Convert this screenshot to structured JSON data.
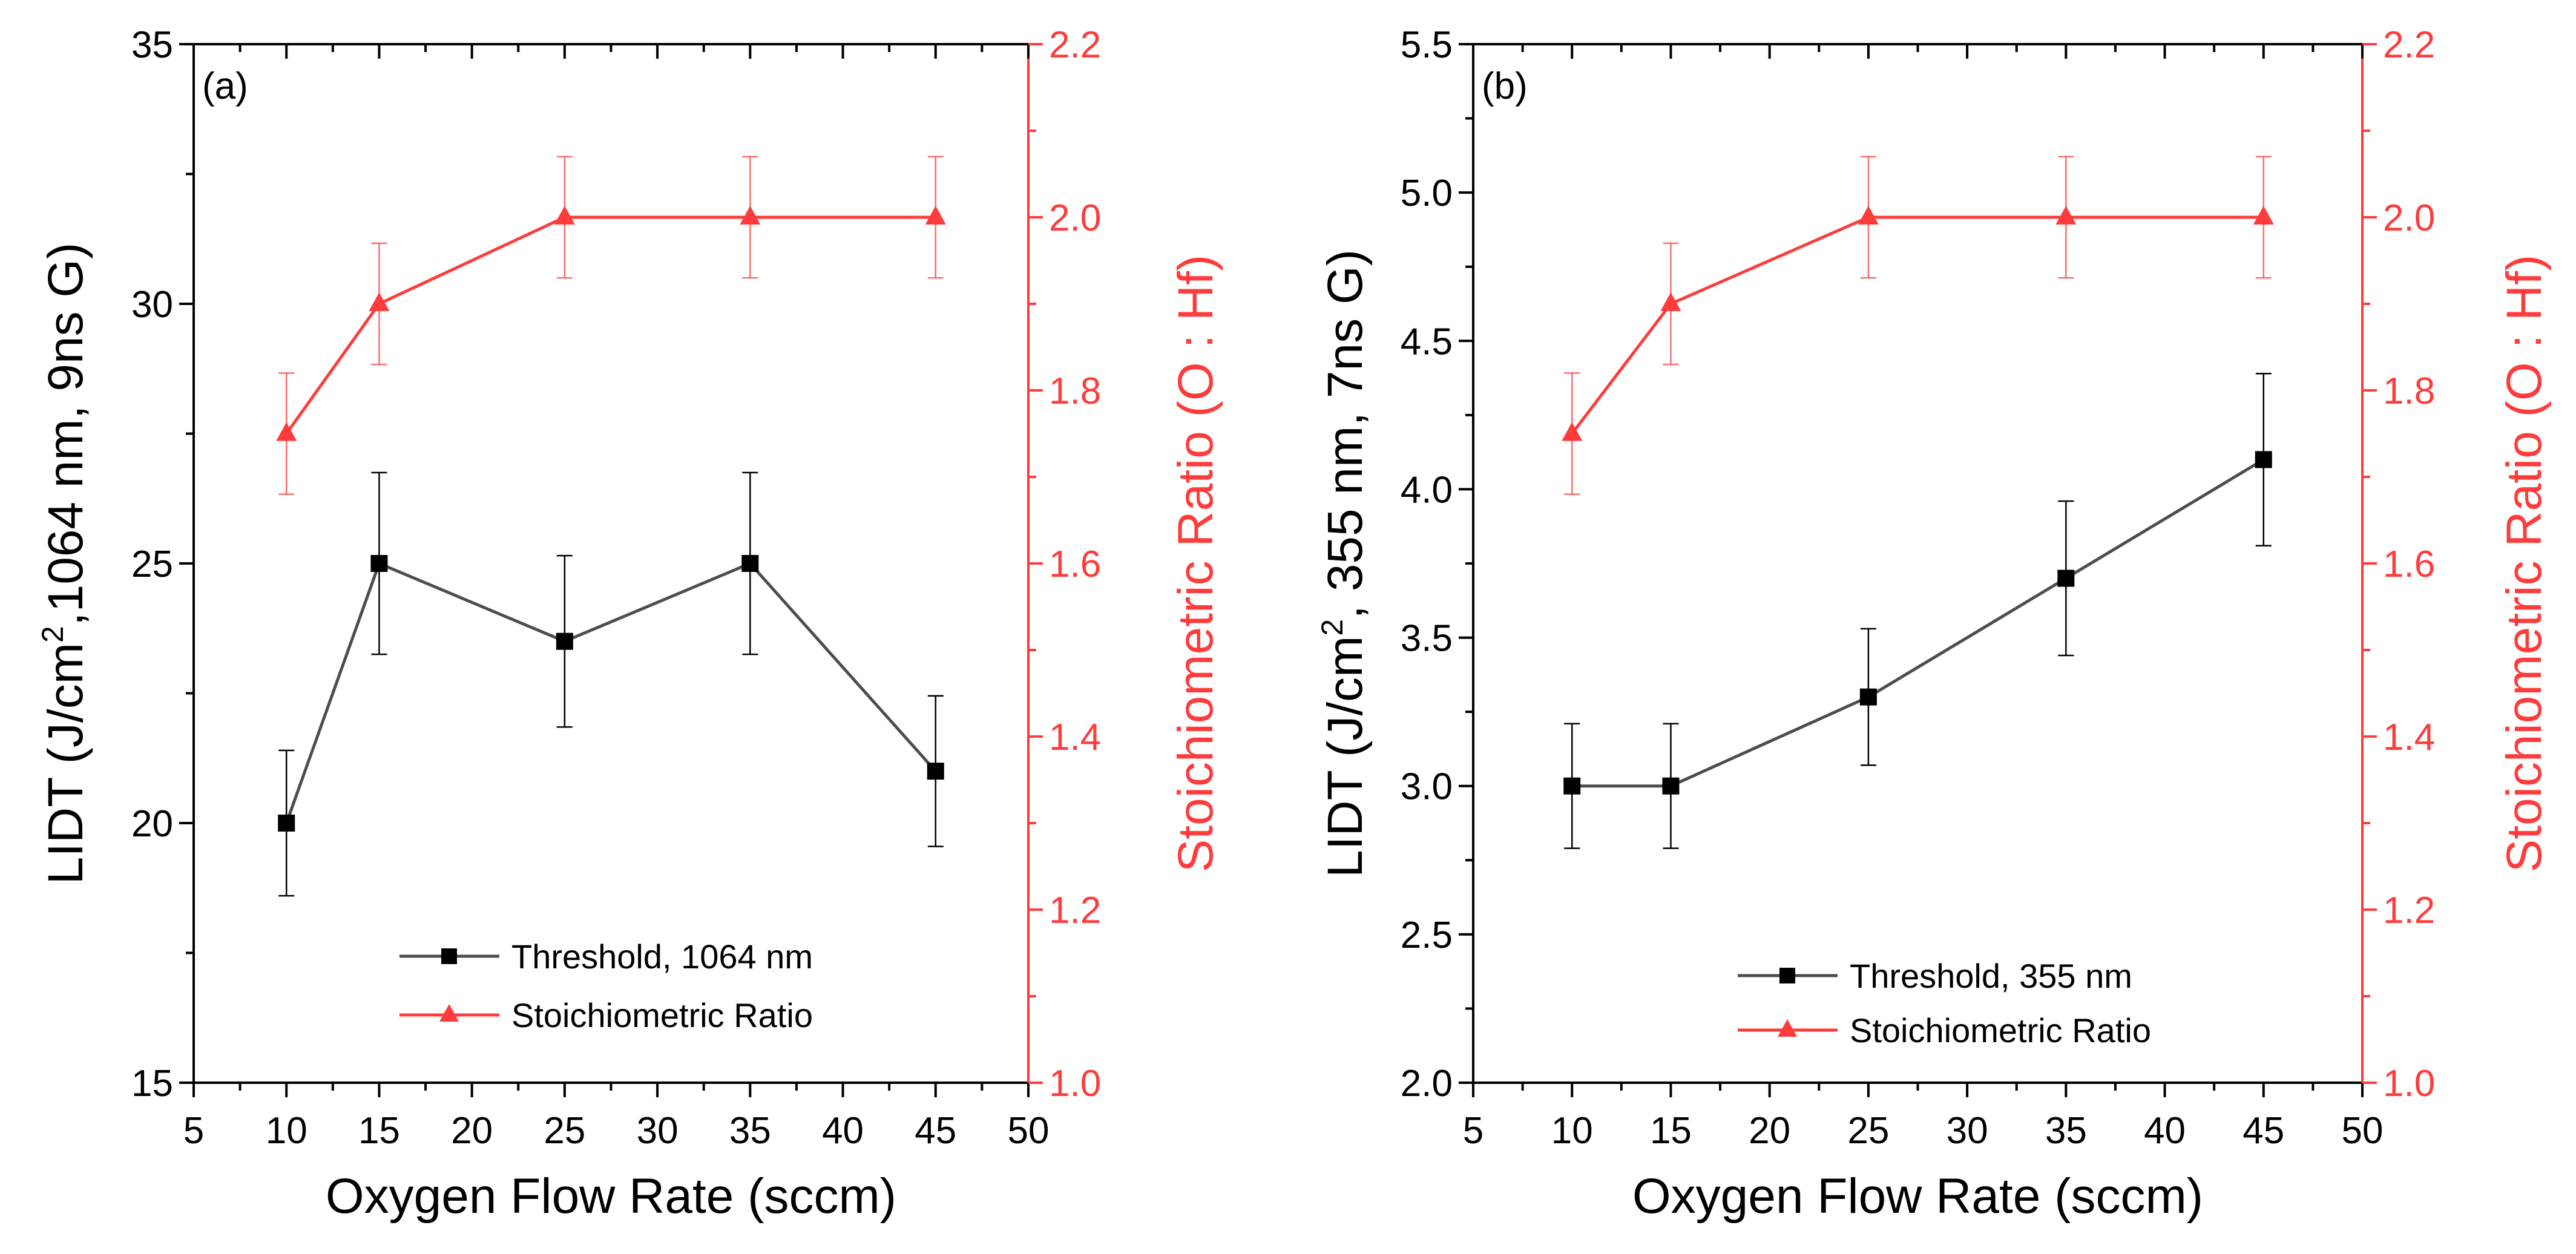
{
  "colors": {
    "threshold": "#000000",
    "threshold_line": "#4d4d4d",
    "ratio": "#ff3b3b",
    "axis": "#000000"
  },
  "chart_data": [
    {
      "type": "line",
      "panel_label": "(a)",
      "title": "",
      "xlabel": "Oxygen Flow Rate (sccm)",
      "ylabel": {
        "prefix": "LIDT (J/cm",
        "sup": "2",
        "suffix": ",1064 nm, 9ns G)"
      },
      "y2label": "Stoichiometric Ratio (O : Hf)",
      "xlim": [
        5,
        50
      ],
      "xticks": [
        5,
        10,
        15,
        20,
        25,
        30,
        35,
        40,
        45,
        50
      ],
      "ylim": [
        15,
        35
      ],
      "yticks": [
        15,
        20,
        25,
        30,
        35
      ],
      "yminor": 2.5,
      "y2lim": [
        1.0,
        2.2
      ],
      "y2ticks": [
        "1.0",
        "1.2",
        "1.4",
        "1.6",
        "1.8",
        "2.0",
        "2.2"
      ],
      "y2minor": 0.1,
      "x": [
        10,
        15,
        25,
        35,
        45
      ],
      "series": [
        {
          "name": "Threshold, 1064 nm",
          "axis": "left",
          "marker": "square",
          "values": [
            20,
            25,
            23.5,
            25,
            21
          ],
          "errors": [
            1.4,
            1.75,
            1.65,
            1.75,
            1.45
          ]
        },
        {
          "name": "Stoichiometric Ratio",
          "axis": "right",
          "marker": "triangle",
          "values": [
            1.75,
            1.9,
            2.0,
            2.0,
            2.0
          ],
          "errors": [
            0.07,
            0.07,
            0.07,
            0.07,
            0.07
          ]
        }
      ],
      "legend_placement": "bottom-center"
    },
    {
      "type": "line",
      "panel_label": "(b)",
      "title": "",
      "xlabel": "Oxygen Flow Rate (sccm)",
      "ylabel": {
        "prefix": "LIDT (J/cm",
        "sup": "2",
        "suffix": ", 355 nm, 7ns G)"
      },
      "y2label": "Stoichiometric Ratio (O : Hf)",
      "xlim": [
        5,
        50
      ],
      "xticks": [
        5,
        10,
        15,
        20,
        25,
        30,
        35,
        40,
        45,
        50
      ],
      "ylim": [
        2.0,
        5.5
      ],
      "yticks": [
        "2.0",
        "2.5",
        "3.0",
        "3.5",
        "4.0",
        "4.5",
        "5.0",
        "5.5"
      ],
      "yminor": 0.25,
      "y2lim": [
        1.0,
        2.2
      ],
      "y2ticks": [
        "1.0",
        "1.2",
        "1.4",
        "1.6",
        "1.8",
        "2.0",
        "2.2"
      ],
      "y2minor": 0.1,
      "x": [
        10,
        15,
        25,
        35,
        45
      ],
      "series": [
        {
          "name": "Threshold, 355 nm",
          "axis": "left",
          "marker": "square",
          "values": [
            3.0,
            3.0,
            3.3,
            3.7,
            4.1
          ],
          "errors": [
            0.21,
            0.21,
            0.23,
            0.26,
            0.29
          ]
        },
        {
          "name": "Stoichiometric Ratio",
          "axis": "right",
          "marker": "triangle",
          "values": [
            1.75,
            1.9,
            2.0,
            2.0,
            2.0
          ],
          "errors": [
            0.07,
            0.07,
            0.07,
            0.07,
            0.07
          ]
        }
      ],
      "legend_placement": "bottom-center"
    }
  ]
}
